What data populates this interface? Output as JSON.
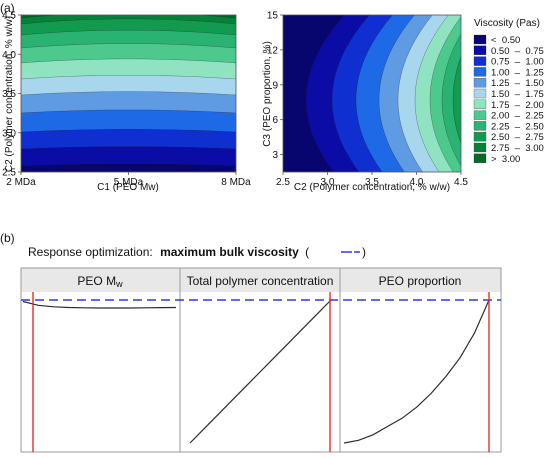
{
  "panel_a_label": "(a)",
  "panel_b_label": "(b)",
  "colors": {
    "levels": [
      "#06066e",
      "#0b0ba6",
      "#0f2fd0",
      "#1e6ae6",
      "#5e9be2",
      "#a8d6ec",
      "#8fe3c0",
      "#4dc98e",
      "#2ab273",
      "#129a4e",
      "#05813a",
      "#016a25"
    ],
    "red_line": "#e03030",
    "target_line": "#2a3ae0",
    "curve": "#2b2b2b",
    "frame": "#8a8a8a"
  },
  "chart_data": [
    {
      "type": "contour",
      "x": {
        "label": "C1 (PEO Mw)",
        "ticks": [
          "2 MDa",
          "5 MDa",
          "8 MDa"
        ],
        "range": [
          2,
          8
        ]
      },
      "y": {
        "label": "C2 (Polymer concentration, % w/w)",
        "ticks": [
          "2.5",
          "3.0",
          "3.5",
          "4.0",
          "4.5"
        ],
        "range": [
          2.5,
          4.5
        ]
      },
      "z_label": "Viscosity (Pas)"
    },
    {
      "type": "contour",
      "x": {
        "label": "C2 (Polymer concentration, % w/w)",
        "ticks": [
          "2.5",
          "3.0",
          "3.5",
          "4.0",
          "4.5"
        ],
        "range": [
          2.5,
          4.5
        ]
      },
      "y": {
        "label": "C3 (PEO proportion, %)",
        "ticks": [
          "3",
          "6",
          "9",
          "12",
          "15"
        ],
        "range": [
          1.5,
          15
        ]
      },
      "z_label": "Viscosity (Pas)"
    },
    {
      "type": "line",
      "title": "Response optimization:",
      "title_bold": "maximum bulk viscosity",
      "title_paren_open": "(",
      "title_paren_close": ")",
      "panels": [
        {
          "name": "PEO Mw",
          "name_main": "PEO M",
          "name_sub": "w",
          "x": [
            0,
            0.1,
            0.2,
            0.3,
            0.4,
            0.5,
            0.6,
            0.7,
            0.8,
            0.9,
            1
          ],
          "y": [
            0.99,
            0.965,
            0.955,
            0.95,
            0.948,
            0.947,
            0.947,
            0.947,
            0.948,
            0.949,
            0.95
          ]
        },
        {
          "name": "Total polymer concentration",
          "x": [
            0,
            0.1,
            0.2,
            0.3,
            0.4,
            0.5,
            0.6,
            0.7,
            0.8,
            0.9,
            1
          ],
          "y": [
            0.0,
            0.1,
            0.2,
            0.3,
            0.4,
            0.5,
            0.6,
            0.7,
            0.8,
            0.9,
            1.0
          ]
        },
        {
          "name": "PEO proportion",
          "x": [
            0,
            0.1,
            0.2,
            0.3,
            0.4,
            0.5,
            0.6,
            0.7,
            0.8,
            0.9,
            1
          ],
          "y": [
            0.48,
            0.49,
            0.51,
            0.54,
            0.57,
            0.61,
            0.66,
            0.72,
            0.79,
            0.88,
            1.0
          ]
        }
      ]
    }
  ],
  "legend": {
    "title": "Viscosity (Pas)",
    "entries": [
      {
        "label": "<  0.50",
        "color": "#06066e"
      },
      {
        "label": "0.50  –  0.75",
        "color": "#0b0ba6"
      },
      {
        "label": "0.75  –  1.00",
        "color": "#0f2fd0"
      },
      {
        "label": "1.00  –  1.25",
        "color": "#1e6ae6"
      },
      {
        "label": "1.25  –  1.50",
        "color": "#5e9be2"
      },
      {
        "label": "1.50  –  1.75",
        "color": "#a8d6ec"
      },
      {
        "label": "1.75  –  2.00",
        "color": "#8fe3c0"
      },
      {
        "label": "2.00  –  2.25",
        "color": "#4dc98e"
      },
      {
        "label": "2.25  –  2.50",
        "color": "#2ab273"
      },
      {
        "label": "2.50  –  2.75",
        "color": "#129a4e"
      },
      {
        "label": "2.75  –  3.00",
        "color": "#05813a"
      },
      {
        "label": ">  3.00",
        "color": "#016a25"
      }
    ]
  }
}
